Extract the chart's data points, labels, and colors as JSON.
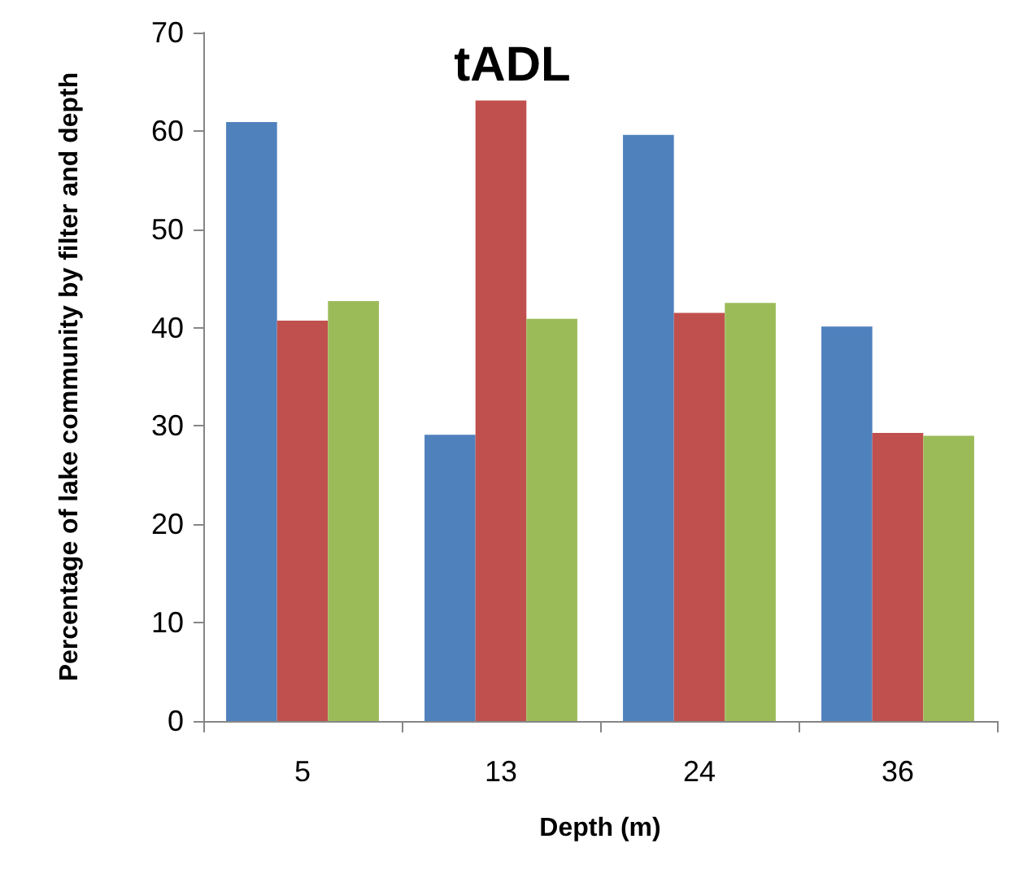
{
  "chart_data": {
    "type": "bar",
    "title": "tADL",
    "xlabel": "Depth (m)",
    "ylabel": "Percentage of lake community by filter and depth",
    "categories": [
      "5",
      "13",
      "24",
      "36"
    ],
    "series": [
      {
        "color": "#4f81bd",
        "values": [
          60.9,
          29.1,
          59.6,
          40.1
        ]
      },
      {
        "color": "#c0504d",
        "values": [
          40.7,
          63.1,
          41.5,
          29.3
        ]
      },
      {
        "color": "#9bbb59",
        "values": [
          42.7,
          40.9,
          42.5,
          29.0
        ]
      }
    ],
    "ylim": [
      0,
      70
    ],
    "yticks": [
      0,
      10,
      20,
      30,
      40,
      50,
      60,
      70
    ],
    "grid": false
  }
}
